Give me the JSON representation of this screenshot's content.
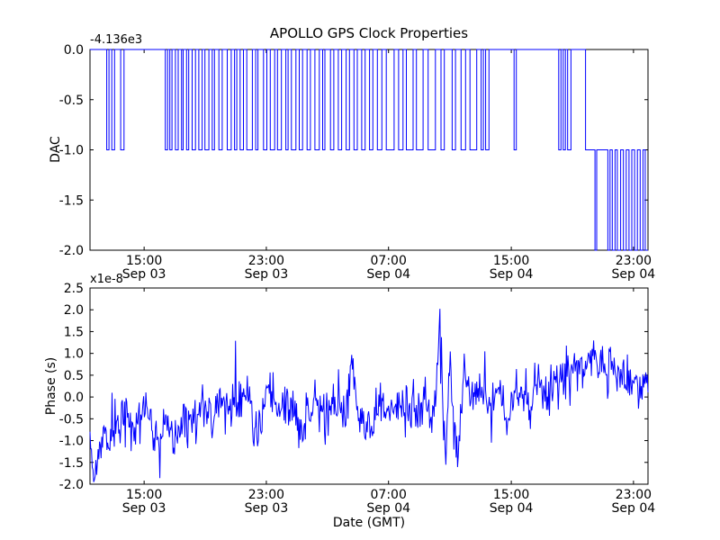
{
  "figure": {
    "title": "APOLLO GPS Clock Properties",
    "xlabel": "Date (GMT)",
    "background": "#ffffff",
    "axis_color": "#000000",
    "line_color": "#0000ff",
    "x_ticks": [
      {
        "frac": 0.097,
        "time": "15:00",
        "date": "Sep 03"
      },
      {
        "frac": 0.316,
        "time": "23:00",
        "date": "Sep 03"
      },
      {
        "frac": 0.535,
        "time": "07:00",
        "date": "Sep 04"
      },
      {
        "frac": 0.755,
        "time": "15:00",
        "date": "Sep 04"
      },
      {
        "frac": 0.974,
        "time": "23:00",
        "date": "Sep 04"
      }
    ]
  },
  "chart_data": [
    {
      "type": "line",
      "subplot": "top",
      "title": "APOLLO GPS Clock Properties",
      "ylabel": "DAC",
      "offset_text": "-4.136e3",
      "value_offset": -4136,
      "ylim": [
        -2.0,
        0.0
      ],
      "y_ticks": [
        "0.0",
        "-0.5",
        "-1.0",
        "-1.5",
        "-2.0"
      ],
      "x_tick_labels": [
        "15:00 Sep 03",
        "23:00 Sep 03",
        "07:00 Sep 04",
        "15:00 Sep 04",
        "23:00 Sep 04"
      ],
      "line_style": "step",
      "description": "DAC counts toggling between offset values 0 and -1 (i.e. -4136 and -4137), settling at -1 near the end and toggling down to -2 (-4138) at the far right",
      "steps": [
        [
          0.0,
          0
        ],
        [
          0.03,
          -1
        ],
        [
          0.034,
          0
        ],
        [
          0.039,
          -1
        ],
        [
          0.044,
          0
        ],
        [
          0.055,
          -1
        ],
        [
          0.061,
          0
        ],
        [
          0.135,
          -1
        ],
        [
          0.139,
          0
        ],
        [
          0.143,
          -1
        ],
        [
          0.147,
          0
        ],
        [
          0.153,
          -1
        ],
        [
          0.158,
          0
        ],
        [
          0.164,
          -1
        ],
        [
          0.167,
          0
        ],
        [
          0.173,
          -1
        ],
        [
          0.177,
          0
        ],
        [
          0.183,
          -1
        ],
        [
          0.189,
          0
        ],
        [
          0.195,
          -1
        ],
        [
          0.201,
          0
        ],
        [
          0.206,
          -1
        ],
        [
          0.213,
          0
        ],
        [
          0.219,
          -1
        ],
        [
          0.223,
          0
        ],
        [
          0.231,
          -1
        ],
        [
          0.237,
          0
        ],
        [
          0.246,
          -1
        ],
        [
          0.253,
          0
        ],
        [
          0.259,
          -1
        ],
        [
          0.263,
          0
        ],
        [
          0.269,
          -1
        ],
        [
          0.275,
          0
        ],
        [
          0.281,
          -1
        ],
        [
          0.291,
          0
        ],
        [
          0.297,
          -1
        ],
        [
          0.301,
          0
        ],
        [
          0.311,
          -1
        ],
        [
          0.317,
          0
        ],
        [
          0.323,
          -1
        ],
        [
          0.331,
          0
        ],
        [
          0.336,
          -1
        ],
        [
          0.343,
          0
        ],
        [
          0.351,
          -1
        ],
        [
          0.355,
          0
        ],
        [
          0.361,
          -1
        ],
        [
          0.369,
          0
        ],
        [
          0.375,
          -1
        ],
        [
          0.381,
          0
        ],
        [
          0.389,
          -1
        ],
        [
          0.395,
          0
        ],
        [
          0.403,
          -1
        ],
        [
          0.411,
          0
        ],
        [
          0.417,
          -1
        ],
        [
          0.421,
          0
        ],
        [
          0.431,
          -1
        ],
        [
          0.437,
          0
        ],
        [
          0.445,
          -1
        ],
        [
          0.451,
          0
        ],
        [
          0.459,
          -1
        ],
        [
          0.465,
          0
        ],
        [
          0.473,
          -1
        ],
        [
          0.479,
          0
        ],
        [
          0.487,
          -1
        ],
        [
          0.493,
          0
        ],
        [
          0.501,
          -1
        ],
        [
          0.507,
          0
        ],
        [
          0.515,
          -1
        ],
        [
          0.523,
          0
        ],
        [
          0.531,
          -1
        ],
        [
          0.545,
          0
        ],
        [
          0.553,
          -1
        ],
        [
          0.561,
          0
        ],
        [
          0.567,
          -1
        ],
        [
          0.579,
          0
        ],
        [
          0.585,
          -1
        ],
        [
          0.597,
          0
        ],
        [
          0.606,
          -1
        ],
        [
          0.619,
          0
        ],
        [
          0.629,
          -1
        ],
        [
          0.635,
          0
        ],
        [
          0.649,
          -1
        ],
        [
          0.655,
          0
        ],
        [
          0.665,
          -1
        ],
        [
          0.673,
          0
        ],
        [
          0.681,
          -1
        ],
        [
          0.693,
          0
        ],
        [
          0.701,
          -1
        ],
        [
          0.705,
          0
        ],
        [
          0.709,
          -1
        ],
        [
          0.715,
          0
        ],
        [
          0.76,
          -1
        ],
        [
          0.764,
          0
        ],
        [
          0.84,
          -1
        ],
        [
          0.844,
          0
        ],
        [
          0.848,
          -1
        ],
        [
          0.852,
          0
        ],
        [
          0.856,
          -1
        ],
        [
          0.862,
          0
        ],
        [
          0.888,
          -1
        ],
        [
          0.905,
          -2
        ],
        [
          0.908,
          -1
        ],
        [
          0.928,
          -2
        ],
        [
          0.932,
          -1
        ],
        [
          0.936,
          -2
        ],
        [
          0.941,
          -1
        ],
        [
          0.945,
          -2
        ],
        [
          0.951,
          -1
        ],
        [
          0.956,
          -2
        ],
        [
          0.961,
          -1
        ],
        [
          0.966,
          -2
        ],
        [
          0.971,
          -1
        ],
        [
          0.976,
          -2
        ],
        [
          0.981,
          -1
        ],
        [
          0.986,
          -2
        ],
        [
          0.991,
          -1
        ],
        [
          0.995,
          -2
        ],
        [
          1.0,
          -2
        ]
      ]
    },
    {
      "type": "line",
      "subplot": "bottom",
      "ylabel": "Phase (s)",
      "xlabel": "Date (GMT)",
      "offset_text": "x1e-8",
      "scale_factor": 1e-08,
      "ylim": [
        -2.0,
        2.5
      ],
      "y_ticks": [
        "2.5",
        "2.0",
        "1.5",
        "1.0",
        "0.5",
        "0.0",
        "-0.5",
        "-1.0",
        "-1.5",
        "-2.0"
      ],
      "x_tick_labels": [
        "15:00 Sep 03",
        "23:00 Sep 03",
        "07:00 Sep 04",
        "15:00 Sep 04",
        "23:00 Sep 04"
      ],
      "description": "Noisy clock phase in units of 1e-8 s; starts near -1 to -1.7, meanders around -0.3 to 0, large spike to +2.5 and dips to -1.9 around mid Sep 04 morning, then rises to ~+0.8 before ending near +0.3",
      "envelope_keypoints": [
        [
          0.0,
          -1.05
        ],
        [
          0.008,
          -1.65
        ],
        [
          0.015,
          -1.2
        ],
        [
          0.025,
          -0.9
        ],
        [
          0.035,
          -1.1
        ],
        [
          0.045,
          -0.6
        ],
        [
          0.06,
          -0.45
        ],
        [
          0.075,
          -0.7
        ],
        [
          0.09,
          -0.45
        ],
        [
          0.105,
          -0.6
        ],
        [
          0.115,
          -0.85
        ],
        [
          0.128,
          -1.0
        ],
        [
          0.136,
          -0.3
        ],
        [
          0.145,
          -0.9
        ],
        [
          0.16,
          -0.95
        ],
        [
          0.175,
          -0.6
        ],
        [
          0.19,
          -0.35
        ],
        [
          0.205,
          -0.25
        ],
        [
          0.22,
          -0.4
        ],
        [
          0.235,
          -0.1
        ],
        [
          0.25,
          -0.35
        ],
        [
          0.265,
          -0.2
        ],
        [
          0.28,
          0.1
        ],
        [
          0.292,
          -0.45
        ],
        [
          0.3,
          -0.95
        ],
        [
          0.31,
          -0.3
        ],
        [
          0.322,
          0.2
        ],
        [
          0.335,
          -0.2
        ],
        [
          0.35,
          -0.4
        ],
        [
          0.365,
          -0.3
        ],
        [
          0.378,
          -0.75
        ],
        [
          0.39,
          -0.3
        ],
        [
          0.405,
          -0.15
        ],
        [
          0.42,
          -0.3
        ],
        [
          0.435,
          -0.2
        ],
        [
          0.45,
          -0.4
        ],
        [
          0.463,
          -0.1
        ],
        [
          0.471,
          1.1
        ],
        [
          0.478,
          -0.3
        ],
        [
          0.49,
          -0.75
        ],
        [
          0.5,
          -0.9
        ],
        [
          0.512,
          -0.25
        ],
        [
          0.525,
          -0.1
        ],
        [
          0.54,
          -0.3
        ],
        [
          0.555,
          -0.15
        ],
        [
          0.57,
          -0.35
        ],
        [
          0.585,
          -0.2
        ],
        [
          0.6,
          -0.1
        ],
        [
          0.612,
          -0.4
        ],
        [
          0.622,
          0.3
        ],
        [
          0.628,
          2.15
        ],
        [
          0.633,
          -0.5
        ],
        [
          0.638,
          -1.55
        ],
        [
          0.645,
          1.25
        ],
        [
          0.652,
          -0.9
        ],
        [
          0.66,
          -1.3
        ],
        [
          0.668,
          0.6
        ],
        [
          0.676,
          0.2
        ],
        [
          0.69,
          -0.1
        ],
        [
          0.705,
          0.15
        ],
        [
          0.72,
          -0.2
        ],
        [
          0.735,
          0.1
        ],
        [
          0.75,
          -0.55
        ],
        [
          0.762,
          0.1
        ],
        [
          0.775,
          0.2
        ],
        [
          0.79,
          -0.3
        ],
        [
          0.8,
          0.4
        ],
        [
          0.815,
          0.1
        ],
        [
          0.83,
          0.3
        ],
        [
          0.845,
          0.45
        ],
        [
          0.86,
          0.55
        ],
        [
          0.875,
          0.6
        ],
        [
          0.89,
          0.8
        ],
        [
          0.9,
          0.9
        ],
        [
          0.91,
          0.7
        ],
        [
          0.92,
          0.75
        ],
        [
          0.93,
          0.55
        ],
        [
          0.945,
          0.5
        ],
        [
          0.96,
          0.35
        ],
        [
          0.975,
          0.3
        ],
        [
          0.99,
          0.25
        ],
        [
          1.0,
          0.3
        ]
      ],
      "noise": {
        "amplitude": 0.27,
        "seed": 42,
        "n_points": 760,
        "spike_chance": 0.04,
        "spike_gain": 2.4
      }
    }
  ]
}
